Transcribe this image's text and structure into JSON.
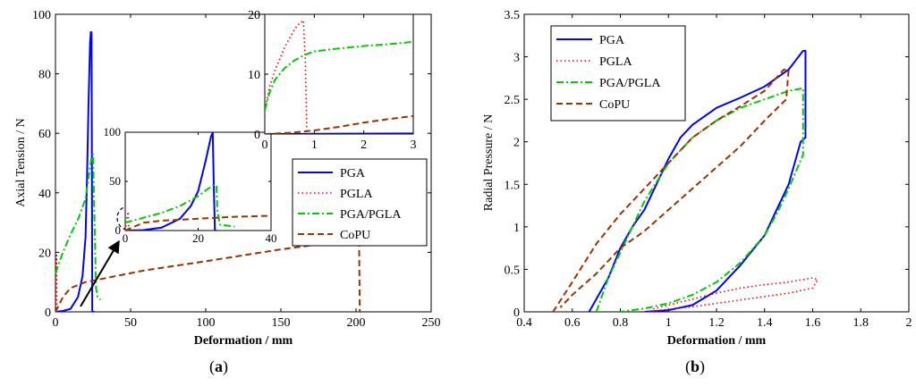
{
  "chart_data": [
    {
      "type": "line",
      "panel": "a",
      "caption_open": "(",
      "caption_letter": "a",
      "caption_close": ")",
      "xlabel": "Deformation / mm",
      "ylabel": "Axial Tension / N",
      "xlim": [
        0,
        250
      ],
      "ylim": [
        0,
        100
      ],
      "xticks": [
        0,
        50,
        100,
        150,
        200,
        250
      ],
      "yticks": [
        0,
        20,
        40,
        60,
        80,
        100
      ],
      "legend": [
        "PGA",
        "PGLA",
        "PGA/PGLA",
        "CoPU"
      ],
      "legend_position": "middle-right",
      "series": [
        {
          "name": "PGA",
          "color": "#0000ff",
          "style": "solid",
          "x": [
            0,
            5,
            10,
            15,
            18,
            20,
            21,
            22,
            23,
            23.5,
            24,
            24.3,
            24.5,
            25,
            26
          ],
          "y": [
            0,
            0.3,
            1,
            5,
            12,
            25,
            45,
            70,
            90,
            94,
            94,
            40,
            0,
            0,
            0
          ]
        },
        {
          "name": "PGLA",
          "color": "#ff0000",
          "style": "dotted",
          "x": [
            0,
            0.3,
            0.5,
            0.7,
            0.8,
            0.85,
            0.9
          ],
          "y": [
            0,
            10,
            15,
            18,
            19,
            10,
            0
          ]
        },
        {
          "name": "PGA/PGLA",
          "color": "#00cc00",
          "style": "dashdot",
          "x": [
            0,
            2,
            5,
            10,
            15,
            20,
            22,
            24,
            25,
            26,
            27,
            28,
            30
          ],
          "y": [
            13,
            16,
            20,
            26,
            31,
            38,
            45,
            52,
            53,
            30,
            8,
            5,
            4
          ]
        },
        {
          "name": "CoPU",
          "color": "#993300",
          "style": "dashed",
          "x": [
            0,
            5,
            10,
            20,
            40,
            60,
            100,
            150,
            180,
            200,
            202,
            202.5
          ],
          "y": [
            0,
            5,
            8,
            10,
            12,
            14,
            17,
            21,
            23,
            25,
            25,
            0
          ]
        }
      ],
      "insets": [
        {
          "name": "inset-zoom-mid",
          "xlim": [
            0,
            40
          ],
          "ylim": [
            0,
            100
          ],
          "xticks": [
            0,
            20,
            40
          ],
          "yticks": [
            0,
            50,
            100
          ],
          "series": [
            {
              "name": "PGA",
              "x": [
                0,
                5,
                10,
                15,
                18,
                20,
                22,
                23.5,
                24,
                24.3,
                24.6,
                25
              ],
              "y": [
                0,
                0.5,
                3,
                12,
                25,
                40,
                70,
                95,
                100,
                45,
                0,
                0
              ]
            },
            {
              "name": "PGLA",
              "x": [
                0,
                0.3,
                0.6,
                0.85,
                0.95
              ],
              "y": [
                0,
                10,
                16,
                19,
                0
              ]
            },
            {
              "name": "PGA/PGLA",
              "x": [
                0,
                5,
                10,
                15,
                20,
                24,
                25,
                25.3,
                26,
                28,
                30
              ],
              "y": [
                8,
                13,
                18,
                25,
                35,
                46,
                46,
                20,
                6,
                5,
                4
              ]
            },
            {
              "name": "CoPU",
              "x": [
                0,
                5,
                10,
                20,
                30,
                40
              ],
              "y": [
                0,
                8,
                10,
                12,
                14,
                15
              ]
            }
          ]
        },
        {
          "name": "inset-zoom-small",
          "xlim": [
            0,
            3
          ],
          "ylim": [
            0,
            20
          ],
          "xticks": [
            0,
            1,
            2,
            3
          ],
          "yticks": [
            0,
            10,
            20
          ],
          "series": [
            {
              "name": "PGA",
              "x": [
                0,
                3
              ],
              "y": [
                0,
                0.1
              ]
            },
            {
              "name": "PGLA",
              "x": [
                0,
                0.1,
                0.2,
                0.3,
                0.4,
                0.5,
                0.6,
                0.7,
                0.78,
                0.82,
                0.85
              ],
              "y": [
                4,
                8,
                10.5,
                12.5,
                14.5,
                16,
                17.5,
                18.5,
                19,
                12,
                0
              ]
            },
            {
              "name": "PGA/PGLA",
              "x": [
                0,
                0.1,
                0.2,
                0.4,
                0.6,
                0.8,
                1,
                1.5,
                2,
                2.5,
                3
              ],
              "y": [
                4,
                7,
                9,
                11,
                12.3,
                13.2,
                13.8,
                14.3,
                14.7,
                15,
                15.4
              ]
            },
            {
              "name": "CoPU",
              "x": [
                0,
                0.5,
                1,
                1.5,
                2,
                2.5,
                3
              ],
              "y": [
                0,
                0.2,
                0.6,
                1.2,
                1.9,
                2.5,
                3
              ]
            }
          ]
        }
      ]
    },
    {
      "type": "line",
      "panel": "b",
      "caption_open": "(",
      "caption_letter": "b",
      "caption_close": ")",
      "xlabel": "Deformation / mm",
      "ylabel": "Radial Pressure / N",
      "xlim": [
        0.4,
        2
      ],
      "ylim": [
        0,
        3.5
      ],
      "xticks": [
        0.4,
        0.6,
        0.8,
        1,
        1.2,
        1.4,
        1.6,
        1.8,
        2
      ],
      "yticks": [
        0,
        0.5,
        1,
        1.5,
        2,
        2.5,
        3,
        3.5
      ],
      "legend": [
        "PGA",
        "PGLA",
        "PGA/PGLA",
        "CoPU"
      ],
      "legend_position": "top-left",
      "series": [
        {
          "name": "PGA",
          "color": "#0000ff",
          "style": "solid",
          "x": [
            0.67,
            0.7,
            0.75,
            0.8,
            0.85,
            0.9,
            0.95,
            1.0,
            1.05,
            1.1,
            1.2,
            1.3,
            1.4,
            1.5,
            1.56,
            1.57,
            1.57,
            1.55,
            1.5,
            1.45,
            1.4,
            1.3,
            1.2,
            1.1,
            1.0,
            0.9
          ],
          "y": [
            0,
            0.15,
            0.4,
            0.75,
            1.0,
            1.2,
            1.5,
            1.8,
            2.05,
            2.2,
            2.4,
            2.52,
            2.65,
            2.85,
            3.07,
            3.07,
            2.05,
            2.0,
            1.5,
            1.2,
            0.9,
            0.55,
            0.25,
            0.08,
            0.02,
            0
          ]
        },
        {
          "name": "PGLA",
          "color": "#ff0000",
          "style": "dotted",
          "x": [
            0.9,
            1.0,
            1.1,
            1.2,
            1.3,
            1.4,
            1.5,
            1.6,
            1.62,
            1.6,
            1.5,
            1.4,
            1.3,
            1.2,
            1.1,
            1.0,
            0.93
          ],
          "y": [
            0,
            0.03,
            0.06,
            0.1,
            0.14,
            0.18,
            0.22,
            0.28,
            0.38,
            0.4,
            0.35,
            0.32,
            0.28,
            0.22,
            0.15,
            0.08,
            0.03
          ]
        },
        {
          "name": "PGA/PGLA",
          "color": "#00cc00",
          "style": "dashdot",
          "x": [
            0.7,
            0.75,
            0.8,
            0.9,
            1.0,
            1.1,
            1.2,
            1.3,
            1.4,
            1.5,
            1.56,
            1.56,
            1.5,
            1.45,
            1.4,
            1.3,
            1.2,
            1.1,
            1.0,
            0.9,
            0.8
          ],
          "y": [
            0,
            0.4,
            0.7,
            1.3,
            1.75,
            2.05,
            2.25,
            2.4,
            2.5,
            2.6,
            2.63,
            1.85,
            1.45,
            1.15,
            0.9,
            0.58,
            0.35,
            0.2,
            0.1,
            0.04,
            0
          ]
        },
        {
          "name": "CoPU",
          "color": "#993300",
          "style": "dashed",
          "x": [
            0.52,
            0.6,
            0.7,
            0.8,
            0.9,
            1.0,
            1.1,
            1.2,
            1.3,
            1.4,
            1.48,
            1.5,
            1.49,
            1.4,
            1.3,
            1.2,
            1.1,
            1.0,
            0.9,
            0.8,
            0.7,
            0.6,
            0.55
          ],
          "y": [
            0,
            0.35,
            0.8,
            1.15,
            1.45,
            1.75,
            2.05,
            2.25,
            2.42,
            2.6,
            2.85,
            2.85,
            2.5,
            2.25,
            1.95,
            1.7,
            1.45,
            1.2,
            0.95,
            0.75,
            0.45,
            0.2,
            0.05
          ]
        }
      ]
    }
  ]
}
